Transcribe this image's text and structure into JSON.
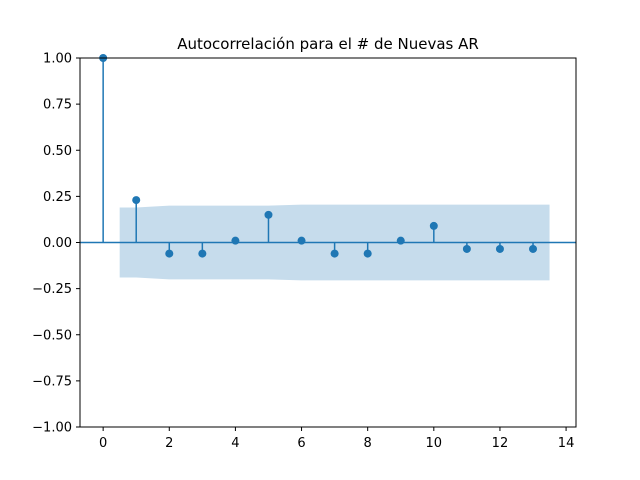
{
  "chart_data": {
    "type": "stem",
    "title": "Autocorrelación para el # de Nuevas AR",
    "xlabel": "",
    "ylabel": "",
    "xlim": [
      -0.7,
      14.3
    ],
    "ylim": [
      -1.0,
      1.0
    ],
    "xticks": [
      0,
      2,
      4,
      6,
      8,
      10,
      12,
      14
    ],
    "yticks": [
      -1.0,
      -0.75,
      -0.5,
      -0.25,
      0.0,
      0.25,
      0.5,
      0.75,
      1.0
    ],
    "ytick_labels": [
      "−1.00",
      "−0.75",
      "−0.50",
      "−0.25",
      "0.00",
      "0.25",
      "0.50",
      "0.75",
      "1.00"
    ],
    "xtick_labels": [
      "0",
      "2",
      "4",
      "6",
      "8",
      "10",
      "12",
      "14"
    ],
    "lags": [
      0,
      1,
      2,
      3,
      4,
      5,
      6,
      7,
      8,
      9,
      10,
      11,
      12,
      13
    ],
    "values": [
      1.0,
      0.23,
      -0.06,
      -0.06,
      0.01,
      0.15,
      0.01,
      -0.06,
      -0.06,
      0.01,
      0.09,
      -0.035,
      -0.035,
      -0.035
    ],
    "confidence_band": {
      "x": [
        0.5,
        1,
        2,
        3,
        4,
        5,
        6,
        7,
        8,
        9,
        10,
        11,
        12,
        13,
        13.5
      ],
      "upper": [
        0.19,
        0.19,
        0.2,
        0.2,
        0.2,
        0.2,
        0.205,
        0.205,
        0.205,
        0.205,
        0.205,
        0.205,
        0.205,
        0.205,
        0.205
      ],
      "lower": [
        -0.19,
        -0.19,
        -0.2,
        -0.2,
        -0.2,
        -0.2,
        -0.205,
        -0.205,
        -0.205,
        -0.205,
        -0.205,
        -0.205,
        -0.205,
        -0.205,
        -0.205
      ]
    },
    "grid": false,
    "colors": {
      "series": "#1f77b4",
      "band": "#c6dcec"
    }
  }
}
